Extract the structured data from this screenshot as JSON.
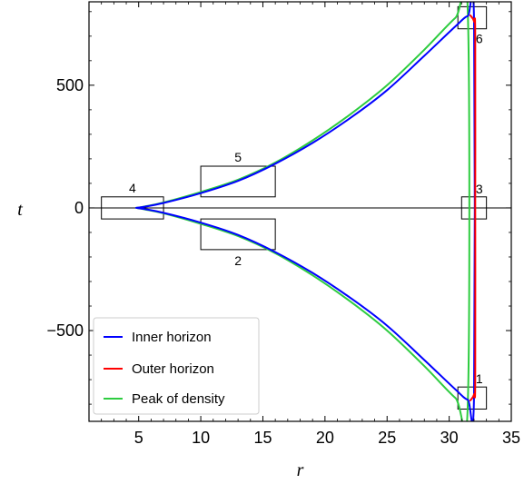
{
  "chart_data": {
    "type": "line",
    "title": "",
    "xlabel": "r",
    "ylabel": "t",
    "xlim": [
      1,
      35
    ],
    "ylim": [
      -870,
      840
    ],
    "xticks": [
      5,
      10,
      15,
      20,
      25,
      30,
      35
    ],
    "yticks": [
      -500,
      0,
      500
    ],
    "ytick_labels": [
      "−500",
      "0",
      "500"
    ],
    "grid": false,
    "legend_position": "lower-left",
    "series": [
      {
        "name": "Inner horizon",
        "color": "#0000ff",
        "x": [
          4.8,
          5.5,
          7,
          10,
          13,
          16,
          19,
          22,
          25,
          28,
          30.5,
          31.5,
          32,
          32,
          31.5,
          30.5,
          28,
          25,
          22,
          19,
          16,
          13,
          10,
          7,
          5.5,
          4.8
        ],
        "y": [
          0,
          5,
          20,
          60,
          110,
          180,
          265,
          365,
          480,
          620,
          740,
          782,
          760,
          -760,
          -782,
          -740,
          -620,
          -480,
          -365,
          -265,
          -180,
          -110,
          -60,
          -20,
          -5,
          0
        ]
      },
      {
        "name": "Outer horizon",
        "color": "#ff0000",
        "x": [
          31.7,
          32,
          32.1,
          32.1,
          32.1,
          32,
          31.7
        ],
        "y": [
          785,
          760,
          700,
          0,
          -700,
          -760,
          -785
        ]
      },
      {
        "name": "Peak of density",
        "color": "#2ecc40",
        "x": [
          4.8,
          5.5,
          7,
          10,
          13,
          16,
          19,
          22,
          25,
          28,
          30.5,
          31.5,
          31.5,
          30.5,
          28,
          25,
          22,
          19,
          16,
          13,
          10,
          7,
          5.5,
          4.8
        ],
        "y": [
          0,
          6,
          22,
          65,
          115,
          185,
          275,
          380,
          500,
          645,
          775,
          800,
          -800,
          -775,
          -645,
          -500,
          -380,
          -275,
          -185,
          -115,
          -65,
          -22,
          -6,
          0
        ]
      }
    ],
    "reference_lines": [
      {
        "orientation": "horizontal",
        "y": 0
      }
    ],
    "boxes": [
      {
        "label": "1",
        "x": [
          30.7,
          33.0
        ],
        "y": [
          -820,
          -730
        ]
      },
      {
        "label": "2",
        "x": [
          10.0,
          16.0
        ],
        "y": [
          -170,
          -45
        ]
      },
      {
        "label": "3",
        "x": [
          31.0,
          33.0
        ],
        "y": [
          -45,
          45
        ]
      },
      {
        "label": "4",
        "x": [
          2.0,
          7.0
        ],
        "y": [
          -45,
          45
        ]
      },
      {
        "label": "5",
        "x": [
          10.0,
          16.0
        ],
        "y": [
          45,
          170
        ]
      },
      {
        "label": "6",
        "x": [
          30.7,
          33.0
        ],
        "y": [
          730,
          820
        ]
      }
    ]
  }
}
